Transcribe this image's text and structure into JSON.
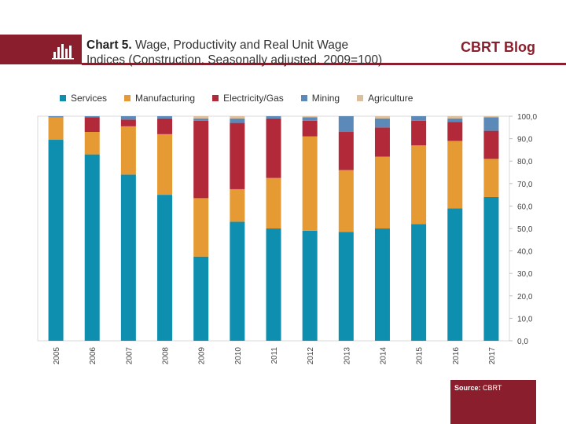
{
  "header": {
    "title_bold": "Chart 5.",
    "title_rest": "Wage, Productivity and Real Unit Wage",
    "title_line2": "Indices (Construction, Seasonally adjusted, 2009=100)",
    "brand": "CBRT Blog"
  },
  "source": {
    "label": "Source:",
    "value": "CBRT"
  },
  "colors": {
    "Services": "#0e8fb0",
    "Manufacturing": "#e59a33",
    "Electricity/Gas": "#b22a3a",
    "Mining": "#5b8ab8",
    "Agriculture": "#dcbf9d",
    "brand": "#8b1e2c"
  },
  "chart_data": {
    "type": "bar",
    "stacked": true,
    "categories": [
      "2005",
      "2006",
      "2007",
      "2008",
      "2009",
      "2010",
      "2011",
      "2012",
      "2013",
      "2014",
      "2015",
      "2016",
      "2017"
    ],
    "series": [
      {
        "name": "Services",
        "values": [
          89.5,
          83,
          74,
          65,
          37.5,
          53,
          50,
          49,
          48.5,
          50,
          52,
          59,
          64
        ]
      },
      {
        "name": "Manufacturing",
        "values": [
          10,
          10,
          21.5,
          27,
          26,
          14.5,
          22.5,
          42,
          27.5,
          32,
          35,
          30,
          17
        ]
      },
      {
        "name": "Electricity/Gas",
        "values": [
          0,
          6.5,
          3,
          7,
          34.5,
          29.5,
          26.5,
          7,
          17,
          13,
          11,
          8.5,
          12.5
        ]
      },
      {
        "name": "Mining",
        "values": [
          0.5,
          0.5,
          1.5,
          1,
          1,
          2,
          1,
          1.5,
          7,
          4,
          2,
          1.5,
          6
        ]
      },
      {
        "name": "Agriculture",
        "values": [
          0,
          0,
          0,
          0,
          1,
          1,
          0,
          0.5,
          0,
          1,
          0,
          1,
          0.5
        ]
      }
    ],
    "ylim": [
      0,
      100
    ],
    "yticks": [
      "0,0",
      "10,0",
      "20,0",
      "30,0",
      "40,0",
      "50,0",
      "60,0",
      "70,0",
      "80,0",
      "90,0",
      "100,0"
    ],
    "y_axis_side": "right",
    "legend_position": "top",
    "grid": false
  }
}
